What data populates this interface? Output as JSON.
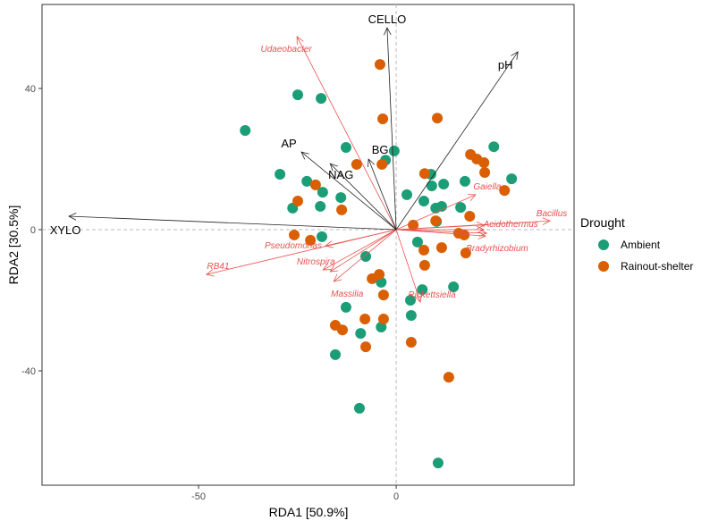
{
  "chart_data": {
    "type": "scatter",
    "xlabel": "RDA1 [50.9%]",
    "ylabel": "RDA2 [30.5%]",
    "xlim": [
      -89.6,
      45
    ],
    "ylim": [
      -72.4,
      63.8
    ],
    "xticks": [
      -50,
      0
    ],
    "yticks": [
      -40,
      0,
      40
    ],
    "grid": false,
    "reference_lines": "dashed at x=0 and y=0",
    "legend": {
      "title": "Drought",
      "placement": "right"
    },
    "series": [
      {
        "name": "Ambient",
        "color": "#1b9e77",
        "points": [
          [
            -24.9,
            38.2
          ],
          [
            -19.0,
            37.2
          ],
          [
            -38.2,
            28.1
          ],
          [
            -12.7,
            23.3
          ],
          [
            -0.5,
            22.3
          ],
          [
            -2.7,
            19.7
          ],
          [
            -29.4,
            15.7
          ],
          [
            -22.6,
            13.7
          ],
          [
            -18.6,
            10.6
          ],
          [
            -14.0,
            9.1
          ],
          [
            -19.2,
            6.6
          ],
          [
            -26.2,
            6.1
          ],
          [
            24.7,
            23.5
          ],
          [
            29.2,
            14.4
          ],
          [
            9.0,
            12.4
          ],
          [
            12.0,
            12.9
          ],
          [
            17.4,
            13.7
          ],
          [
            8.8,
            15.7
          ],
          [
            2.7,
            9.9
          ],
          [
            7.0,
            8.1
          ],
          [
            10.0,
            6.1
          ],
          [
            11.5,
            6.6
          ],
          [
            16.3,
            6.3
          ],
          [
            10.2,
            2.3
          ],
          [
            -18.8,
            -2.0
          ],
          [
            5.4,
            -3.5
          ],
          [
            -7.7,
            -7.6
          ],
          [
            -3.8,
            -14.9
          ],
          [
            6.6,
            -17.0
          ],
          [
            14.5,
            -16.2
          ],
          [
            3.6,
            -20.0
          ],
          [
            3.8,
            -24.3
          ],
          [
            -12.7,
            -22.0
          ],
          [
            -3.8,
            -27.6
          ],
          [
            -9.0,
            -29.4
          ],
          [
            -15.4,
            -35.4
          ],
          [
            -9.3,
            -50.6
          ],
          [
            10.6,
            -66.1
          ]
        ]
      },
      {
        "name": "Rainout-shelter",
        "color": "#d95f02",
        "points": [
          [
            -4.1,
            46.8
          ],
          [
            -3.4,
            31.4
          ],
          [
            10.4,
            31.6
          ],
          [
            -10.0,
            18.5
          ],
          [
            -3.6,
            18.5
          ],
          [
            18.8,
            21.3
          ],
          [
            20.4,
            20.0
          ],
          [
            22.2,
            19.0
          ],
          [
            22.4,
            16.2
          ],
          [
            7.2,
            15.9
          ],
          [
            27.4,
            11.1
          ],
          [
            -20.4,
            12.7
          ],
          [
            -24.9,
            8.1
          ],
          [
            -13.8,
            5.6
          ],
          [
            18.6,
            3.8
          ],
          [
            10.0,
            2.5
          ],
          [
            4.3,
            1.3
          ],
          [
            -25.8,
            -1.5
          ],
          [
            -21.7,
            -3.0
          ],
          [
            15.8,
            -1.0
          ],
          [
            17.2,
            -1.5
          ],
          [
            7.0,
            -5.8
          ],
          [
            11.5,
            -5.1
          ],
          [
            17.6,
            -6.6
          ],
          [
            7.2,
            -10.1
          ],
          [
            -4.3,
            -12.7
          ],
          [
            -6.1,
            -13.9
          ],
          [
            -3.2,
            -18.5
          ],
          [
            -7.9,
            -25.3
          ],
          [
            -3.2,
            -25.3
          ],
          [
            -15.4,
            -27.1
          ],
          [
            -13.6,
            -28.4
          ],
          [
            -7.7,
            -33.2
          ],
          [
            3.8,
            -31.9
          ],
          [
            13.3,
            -41.8
          ]
        ]
      }
    ],
    "env_vectors": {
      "color": "#000000",
      "items": [
        {
          "label": "CELLO",
          "x": -2.3,
          "y": 57.2
        },
        {
          "label": "pH",
          "x": 30.8,
          "y": 50.4
        },
        {
          "label": "AP",
          "x": -24.0,
          "y": 22.0
        },
        {
          "label": "NAG",
          "x": -16.7,
          "y": 18.7
        },
        {
          "label": "BG",
          "x": -7.0,
          "y": 20.0
        },
        {
          "label": "XYLO",
          "x": -82.8,
          "y": 3.8
        }
      ]
    },
    "taxa_vectors": {
      "color": "#e8534f",
      "items": [
        {
          "label": "Udaeobacter",
          "x": -25.1,
          "y": 54.7
        },
        {
          "label": "Gaiella",
          "x": 20.1,
          "y": 9.9
        },
        {
          "label": "Bacillus",
          "x": 38.9,
          "y": 2.5
        },
        {
          "label": "Acidothermus",
          "x": 22.2,
          "y": 1.3
        },
        {
          "label": "Bradyrhizobium",
          "x": 22.6,
          "y": -1.8
        },
        {
          "label": "Pseudomonas",
          "x": -17.9,
          "y": -4.6
        },
        {
          "label": "RB41",
          "x": -48.0,
          "y": -12.7
        },
        {
          "label": "Nitrospira",
          "x": -16.7,
          "y": -11.9
        },
        {
          "label": "Massilia",
          "x": -15.8,
          "y": -14.7
        },
        {
          "label": "Rickettsiella",
          "x": 6.1,
          "y": -20.5
        }
      ],
      "unlabeled": [
        [
          -18.5,
          -11.4
        ],
        [
          22.2,
          0.0
        ],
        [
          22.9,
          -1.0
        ]
      ]
    }
  }
}
